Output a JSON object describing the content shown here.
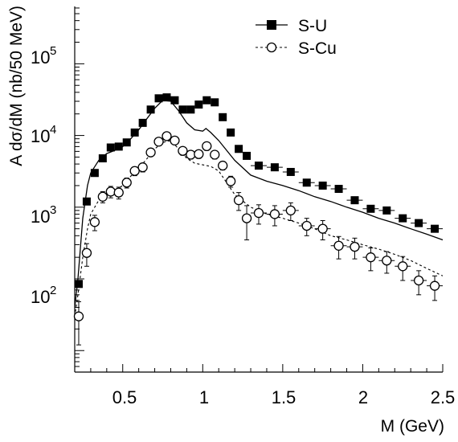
{
  "chart_data": {
    "type": "scatter",
    "xlabel": "M (GeV)",
    "ylabel": "A dσ/dM (nb/50 MeV)",
    "xlim": [
      0.2,
      2.5
    ],
    "ylim_log10": [
      0.7,
      5.8
    ],
    "y_scale": "log",
    "x_ticks": [
      "0.5",
      "1",
      "1.5",
      "2",
      "2.5"
    ],
    "x_tick_values": [
      0.5,
      1.0,
      1.5,
      2.0,
      2.5
    ],
    "y_ticks": [
      {
        "base": "10",
        "exp": "2",
        "value": 100
      },
      {
        "base": "10",
        "exp": "3",
        "value": 1000
      },
      {
        "base": "10",
        "exp": "4",
        "value": 10000
      },
      {
        "base": "10",
        "exp": "5",
        "value": 100000
      }
    ],
    "legend_position": "top-right",
    "series": [
      {
        "name": "S-U",
        "marker": "filled-square",
        "line_style": "solid",
        "x": [
          0.225,
          0.275,
          0.325,
          0.375,
          0.425,
          0.475,
          0.525,
          0.575,
          0.625,
          0.675,
          0.725,
          0.775,
          0.825,
          0.875,
          0.925,
          0.975,
          1.025,
          1.075,
          1.125,
          1.175,
          1.225,
          1.275,
          1.35,
          1.45,
          1.55,
          1.65,
          1.75,
          1.85,
          1.95,
          2.05,
          2.15,
          2.25,
          2.35,
          2.45
        ],
        "y": [
          85,
          1200,
          3000,
          4800,
          6800,
          7000,
          8000,
          11000,
          15000,
          23000,
          33000,
          34000,
          31000,
          23000,
          23000,
          27000,
          31000,
          29000,
          18000,
          11000,
          6500,
          5200,
          3800,
          3600,
          3100,
          2200,
          2000,
          1800,
          1250,
          950,
          900,
          700,
          600,
          500
        ],
        "xerr": [
          0,
          0,
          0,
          0,
          0,
          0,
          0,
          0,
          0,
          0,
          0,
          0,
          0,
          0,
          0,
          0,
          0,
          0,
          0,
          0,
          0,
          0,
          0.05,
          0.05,
          0.05,
          0.05,
          0.05,
          0.05,
          0.05,
          0.05,
          0.05,
          0.05,
          0.05,
          0.05
        ]
      },
      {
        "name": "S-Cu",
        "marker": "open-circle",
        "line_style": "dashed",
        "x": [
          0.225,
          0.275,
          0.325,
          0.375,
          0.425,
          0.475,
          0.525,
          0.575,
          0.625,
          0.675,
          0.725,
          0.775,
          0.825,
          0.875,
          0.925,
          0.975,
          1.025,
          1.075,
          1.125,
          1.175,
          1.225,
          1.275,
          1.35,
          1.45,
          1.55,
          1.65,
          1.75,
          1.85,
          1.95,
          2.05,
          2.15,
          2.25,
          2.35,
          2.45
        ],
        "y": [
          30,
          230,
          620,
          1400,
          1650,
          1600,
          2200,
          3200,
          3600,
          5800,
          8200,
          9800,
          8500,
          6100,
          5400,
          5500,
          7100,
          5400,
          3800,
          2300,
          1250,
          700,
          830,
          800,
          900,
          550,
          500,
          290,
          280,
          200,
          180,
          150,
          95,
          80
        ],
        "yerr_low": [
          18,
          80,
          150,
          250,
          300,
          300,
          350,
          450,
          500,
          700,
          1000,
          1200,
          1000,
          800,
          700,
          700,
          900,
          700,
          500,
          400,
          350,
          350,
          250,
          250,
          250,
          150,
          150,
          100,
          90,
          70,
          60,
          55,
          35,
          30
        ],
        "yerr_high": [
          18,
          80,
          150,
          250,
          300,
          300,
          350,
          450,
          500,
          700,
          1000,
          1200,
          1000,
          800,
          700,
          700,
          900,
          700,
          500,
          400,
          350,
          350,
          250,
          250,
          250,
          150,
          150,
          100,
          90,
          70,
          60,
          55,
          35,
          30
        ],
        "xerr": [
          0,
          0,
          0,
          0,
          0,
          0,
          0,
          0,
          0,
          0,
          0,
          0,
          0,
          0,
          0,
          0,
          0,
          0,
          0,
          0,
          0,
          0,
          0.05,
          0.05,
          0.05,
          0.05,
          0.05,
          0.05,
          0.05,
          0.05,
          0.05,
          0.05,
          0.05,
          0.05
        ]
      }
    ],
    "curves": [
      {
        "style": "solid",
        "x": [
          0.2,
          0.22,
          0.25,
          0.28,
          0.3,
          0.35,
          0.4,
          0.45,
          0.5,
          0.55,
          0.6,
          0.65,
          0.7,
          0.75,
          0.8,
          0.85,
          0.9,
          0.95,
          1.0,
          1.02,
          1.05,
          1.1,
          1.2,
          1.3,
          1.4,
          1.5,
          1.6,
          1.7,
          1.8,
          1.9,
          2.0,
          2.1,
          2.2,
          2.3,
          2.4,
          2.5
        ],
        "y": [
          40,
          100,
          700,
          2000,
          3000,
          4500,
          5600,
          6200,
          7000,
          9000,
          12000,
          17000,
          24000,
          31000,
          30000,
          22000,
          15000,
          12000,
          11500,
          12500,
          11000,
          8500,
          4500,
          2800,
          2300,
          2000,
          1700,
          1400,
          1200,
          1000,
          850,
          700,
          600,
          500,
          420,
          350
        ]
      },
      {
        "style": "dashed",
        "x": [
          0.2,
          0.22,
          0.25,
          0.28,
          0.3,
          0.35,
          0.4,
          0.45,
          0.5,
          0.55,
          0.6,
          0.65,
          0.7,
          0.75,
          0.8,
          0.85,
          0.9,
          0.95,
          1.0,
          1.05,
          1.1,
          1.2,
          1.3,
          1.4,
          1.5,
          1.6,
          1.7,
          1.8,
          1.9,
          2.0,
          2.1,
          2.2,
          2.3,
          2.4,
          2.5
        ],
        "y": [
          30,
          60,
          200,
          500,
          800,
          1250,
          1500,
          1700,
          2000,
          2700,
          3500,
          4700,
          6500,
          8000,
          8500,
          6500,
          4800,
          4100,
          3900,
          3700,
          3200,
          1500,
          1000,
          800,
          700,
          600,
          500,
          400,
          350,
          300,
          260,
          220,
          180,
          140,
          110
        ]
      }
    ]
  }
}
